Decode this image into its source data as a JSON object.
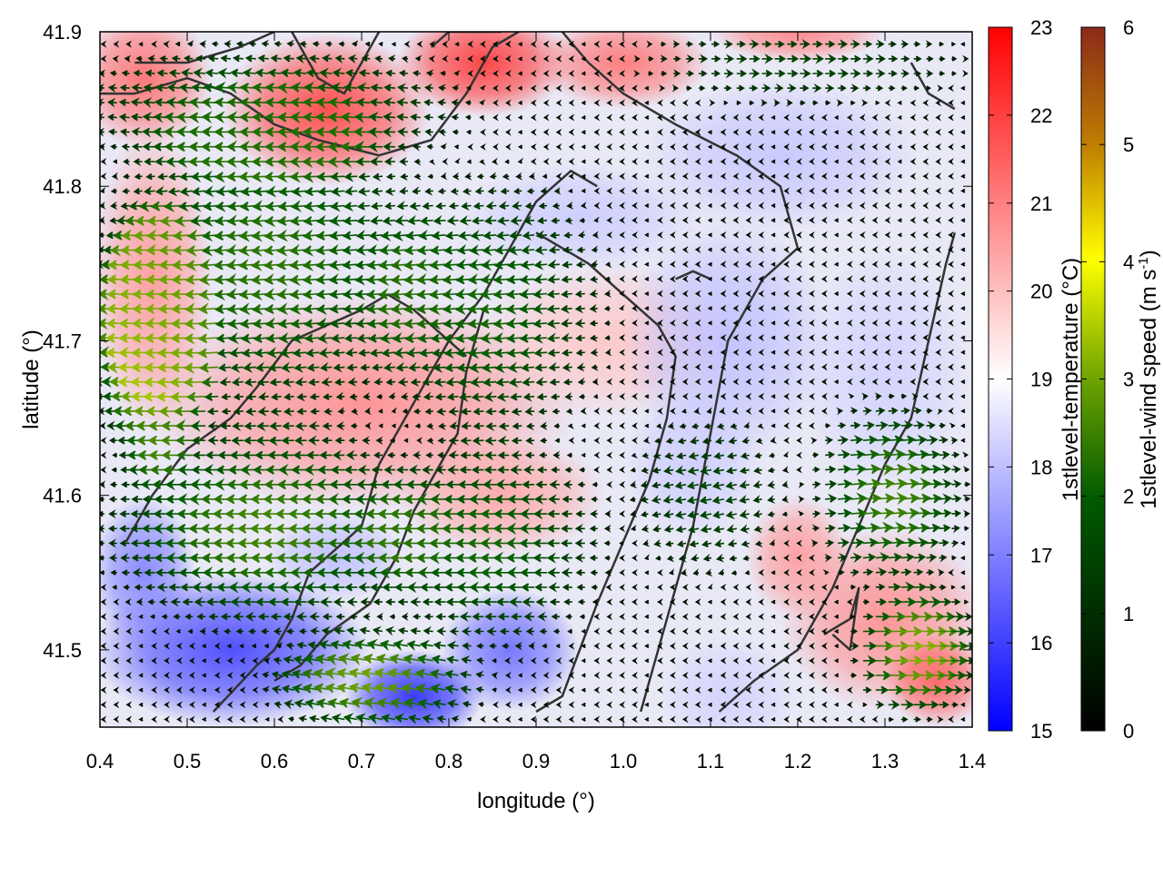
{
  "chart_data": {
    "type": "heatmap",
    "title": "",
    "xlabel": "longitude (°)",
    "ylabel": "latitude (°)",
    "xlim": [
      0.4,
      1.4
    ],
    "ylim": [
      41.45,
      41.9
    ],
    "x_ticks": [
      "0.4",
      "0.5",
      "0.6",
      "0.7",
      "0.8",
      "0.9",
      "1.0",
      "1.1",
      "1.2",
      "1.3",
      "1.4"
    ],
    "y_ticks": [
      "41.5",
      "41.6",
      "41.7",
      "41.8",
      "41.9"
    ],
    "field": "1stlevel-temperature",
    "overlay": "1stlevel-wind speed vectors",
    "temperature_colorbar": {
      "label": "1stlevel-temperature (°C)",
      "range": [
        15,
        23
      ],
      "ticks": [
        "15",
        "16",
        "17",
        "18",
        "19",
        "20",
        "21",
        "22",
        "23"
      ],
      "colors": {
        "low": "#0000ff",
        "mid": "#ffffff",
        "high": "#ff0000"
      }
    },
    "wind_colorbar": {
      "label_main": "1stlevel-wind speed (m s",
      "label_sup": "-1",
      "label_end": ")",
      "range": [
        0,
        6
      ],
      "ticks": [
        "0",
        "1",
        "2",
        "3",
        "4",
        "5",
        "6"
      ],
      "colors": [
        "#000000",
        "#005500",
        "#8ec600",
        "#ffff00",
        "#c08000",
        "#8b2a1a"
      ]
    },
    "temperature_blobs": [
      {
        "lon": 0.45,
        "lat": 41.87,
        "rx": 0.08,
        "ry": 0.045,
        "t": 21.3
      },
      {
        "lon": 0.66,
        "lat": 41.85,
        "rx": 0.12,
        "ry": 0.05,
        "t": 22.0
      },
      {
        "lon": 0.84,
        "lat": 41.88,
        "rx": 0.1,
        "ry": 0.035,
        "t": 22.2
      },
      {
        "lon": 1.0,
        "lat": 41.88,
        "rx": 0.1,
        "ry": 0.03,
        "t": 21.2
      },
      {
        "lon": 1.2,
        "lat": 41.9,
        "rx": 0.1,
        "ry": 0.02,
        "t": 21.0
      },
      {
        "lon": 1.18,
        "lat": 41.82,
        "rx": 0.16,
        "ry": 0.05,
        "t": 18.1
      },
      {
        "lon": 0.95,
        "lat": 41.78,
        "rx": 0.14,
        "ry": 0.035,
        "t": 18.2
      },
      {
        "lon": 0.46,
        "lat": 41.74,
        "rx": 0.07,
        "ry": 0.1,
        "t": 20.6
      },
      {
        "lon": 0.7,
        "lat": 41.66,
        "rx": 0.25,
        "ry": 0.07,
        "t": 20.8
      },
      {
        "lon": 0.98,
        "lat": 41.7,
        "rx": 0.15,
        "ry": 0.05,
        "t": 19.9
      },
      {
        "lon": 1.12,
        "lat": 41.7,
        "rx": 0.12,
        "ry": 0.08,
        "t": 18.0
      },
      {
        "lon": 1.3,
        "lat": 41.68,
        "rx": 0.1,
        "ry": 0.08,
        "t": 18.3
      },
      {
        "lon": 1.08,
        "lat": 41.62,
        "rx": 0.08,
        "ry": 0.05,
        "t": 18.2
      },
      {
        "lon": 1.3,
        "lat": 41.52,
        "rx": 0.12,
        "ry": 0.06,
        "t": 20.8
      },
      {
        "lon": 1.36,
        "lat": 41.48,
        "rx": 0.06,
        "ry": 0.03,
        "t": 21.5
      },
      {
        "lon": 1.2,
        "lat": 41.56,
        "rx": 0.06,
        "ry": 0.04,
        "t": 20.6
      },
      {
        "lon": 1.12,
        "lat": 41.47,
        "rx": 0.08,
        "ry": 0.04,
        "t": 18.3
      },
      {
        "lon": 0.86,
        "lat": 41.6,
        "rx": 0.12,
        "ry": 0.04,
        "t": 20.4
      },
      {
        "lon": 0.55,
        "lat": 41.5,
        "rx": 0.16,
        "ry": 0.05,
        "t": 16.0
      },
      {
        "lon": 0.45,
        "lat": 41.55,
        "rx": 0.06,
        "ry": 0.05,
        "t": 17.0
      },
      {
        "lon": 0.76,
        "lat": 41.47,
        "rx": 0.08,
        "ry": 0.03,
        "t": 15.6
      },
      {
        "lon": 0.87,
        "lat": 41.5,
        "rx": 0.08,
        "ry": 0.04,
        "t": 16.7
      },
      {
        "lon": 0.67,
        "lat": 41.56,
        "rx": 0.08,
        "ry": 0.03,
        "t": 18.0
      }
    ],
    "coastlines": [
      [
        [
          0.4,
          41.86
        ],
        [
          0.44,
          41.86
        ],
        [
          0.5,
          41.87
        ],
        [
          0.55,
          41.86
        ],
        [
          0.6,
          41.84
        ],
        [
          0.65,
          41.83
        ],
        [
          0.72,
          41.82
        ],
        [
          0.78,
          41.83
        ],
        [
          0.82,
          41.86
        ],
        [
          0.85,
          41.89
        ],
        [
          0.88,
          41.9
        ]
      ],
      [
        [
          0.53,
          41.46
        ],
        [
          0.58,
          41.49
        ],
        [
          0.6,
          41.5
        ],
        [
          0.62,
          41.52
        ],
        [
          0.64,
          41.55
        ],
        [
          0.66,
          41.56
        ],
        [
          0.7,
          41.58
        ],
        [
          0.72,
          41.62
        ],
        [
          0.76,
          41.66
        ],
        [
          0.8,
          41.7
        ],
        [
          0.84,
          41.73
        ],
        [
          0.87,
          41.76
        ],
        [
          0.9,
          41.79
        ],
        [
          0.94,
          41.81
        ],
        [
          0.97,
          41.8
        ]
      ],
      [
        [
          0.43,
          41.57
        ],
        [
          0.46,
          41.6
        ],
        [
          0.5,
          41.63
        ],
        [
          0.55,
          41.65
        ],
        [
          0.58,
          41.67
        ],
        [
          0.62,
          41.7
        ],
        [
          0.66,
          41.71
        ],
        [
          0.7,
          41.72
        ],
        [
          0.73,
          41.73
        ],
        [
          0.76,
          41.72
        ],
        [
          0.8,
          41.7
        ],
        [
          0.82,
          41.69
        ]
      ],
      [
        [
          0.9,
          41.77
        ],
        [
          0.96,
          41.75
        ],
        [
          1.0,
          41.73
        ],
        [
          1.04,
          41.71
        ],
        [
          1.06,
          41.69
        ],
        [
          1.05,
          41.65
        ],
        [
          1.03,
          41.61
        ],
        [
          1.0,
          41.57
        ],
        [
          0.97,
          41.53
        ],
        [
          0.95,
          41.5
        ],
        [
          0.93,
          41.47
        ],
        [
          0.9,
          41.46
        ]
      ],
      [
        [
          0.84,
          41.72
        ],
        [
          0.82,
          41.68
        ],
        [
          0.81,
          41.64
        ],
        [
          0.78,
          41.61
        ],
        [
          0.76,
          41.59
        ],
        [
          0.74,
          41.56
        ],
        [
          0.71,
          41.53
        ],
        [
          0.66,
          41.51
        ],
        [
          0.63,
          41.49
        ],
        [
          0.6,
          41.48
        ]
      ],
      [
        [
          1.02,
          41.46
        ],
        [
          1.05,
          41.52
        ],
        [
          1.08,
          41.58
        ],
        [
          1.1,
          41.64
        ],
        [
          1.12,
          41.7
        ],
        [
          1.16,
          41.74
        ],
        [
          1.2,
          41.76
        ],
        [
          1.18,
          41.8
        ],
        [
          1.13,
          41.82
        ],
        [
          1.06,
          41.84
        ],
        [
          1.0,
          41.86
        ],
        [
          0.96,
          41.88
        ],
        [
          0.93,
          41.9
        ]
      ],
      [
        [
          1.11,
          41.46
        ],
        [
          1.15,
          41.48
        ],
        [
          1.2,
          41.5
        ],
        [
          1.24,
          41.54
        ],
        [
          1.27,
          41.58
        ],
        [
          1.3,
          41.62
        ],
        [
          1.33,
          41.65
        ],
        [
          1.35,
          41.7
        ],
        [
          1.37,
          41.75
        ],
        [
          1.38,
          41.77
        ]
      ],
      [
        [
          0.44,
          41.88
        ],
        [
          0.5,
          41.88
        ],
        [
          0.56,
          41.89
        ],
        [
          0.6,
          41.9
        ]
      ],
      [
        [
          0.62,
          41.9
        ],
        [
          0.65,
          41.87
        ],
        [
          0.68,
          41.86
        ],
        [
          0.7,
          41.88
        ],
        [
          0.72,
          41.9
        ]
      ],
      [
        [
          0.78,
          41.89
        ],
        [
          0.8,
          41.9
        ],
        [
          0.86,
          41.9
        ]
      ],
      [
        [
          1.23,
          41.51
        ],
        [
          1.26,
          41.52
        ],
        [
          1.27,
          41.54
        ],
        [
          1.26,
          41.5
        ],
        [
          1.24,
          41.51
        ]
      ],
      [
        [
          1.06,
          41.74
        ],
        [
          1.08,
          41.745
        ],
        [
          1.1,
          41.74
        ]
      ],
      [
        [
          1.33,
          41.88
        ],
        [
          1.35,
          41.86
        ],
        [
          1.38,
          41.85
        ]
      ]
    ],
    "wind_field": {
      "grid_spacing_deg": [
        0.0145,
        0.0095
      ],
      "regions": [
        {
          "lon": 0.47,
          "lat": 41.7,
          "rx": 0.08,
          "ry": 0.1,
          "speed": 3.6,
          "dir_deg": 180
        },
        {
          "lon": 0.6,
          "lat": 41.75,
          "rx": 0.22,
          "ry": 0.12,
          "speed": 2.4,
          "dir_deg": 185
        },
        {
          "lon": 0.85,
          "lat": 41.72,
          "rx": 0.15,
          "ry": 0.1,
          "speed": 2.2,
          "dir_deg": 185
        },
        {
          "lon": 0.6,
          "lat": 41.58,
          "rx": 0.22,
          "ry": 0.08,
          "speed": 2.6,
          "dir_deg": 180
        },
        {
          "lon": 0.85,
          "lat": 41.57,
          "rx": 0.15,
          "ry": 0.08,
          "speed": 2.2,
          "dir_deg": 180
        },
        {
          "lon": 0.72,
          "lat": 41.48,
          "rx": 0.14,
          "ry": 0.04,
          "speed": 3.0,
          "dir_deg": 170
        },
        {
          "lon": 0.6,
          "lat": 41.85,
          "rx": 0.25,
          "ry": 0.05,
          "speed": 2.2,
          "dir_deg": 175
        },
        {
          "lon": 1.3,
          "lat": 41.6,
          "rx": 0.1,
          "ry": 0.07,
          "speed": 2.6,
          "dir_deg": 5
        },
        {
          "lon": 1.33,
          "lat": 41.5,
          "rx": 0.08,
          "ry": 0.05,
          "speed": 3.2,
          "dir_deg": 0
        },
        {
          "lon": 1.2,
          "lat": 41.88,
          "rx": 0.2,
          "ry": 0.03,
          "speed": 1.5,
          "dir_deg": 0
        },
        {
          "lon": 1.1,
          "lat": 41.6,
          "rx": 0.1,
          "ry": 0.06,
          "speed": 1.6,
          "dir_deg": 190
        }
      ],
      "background_speed": 0.35
    }
  }
}
